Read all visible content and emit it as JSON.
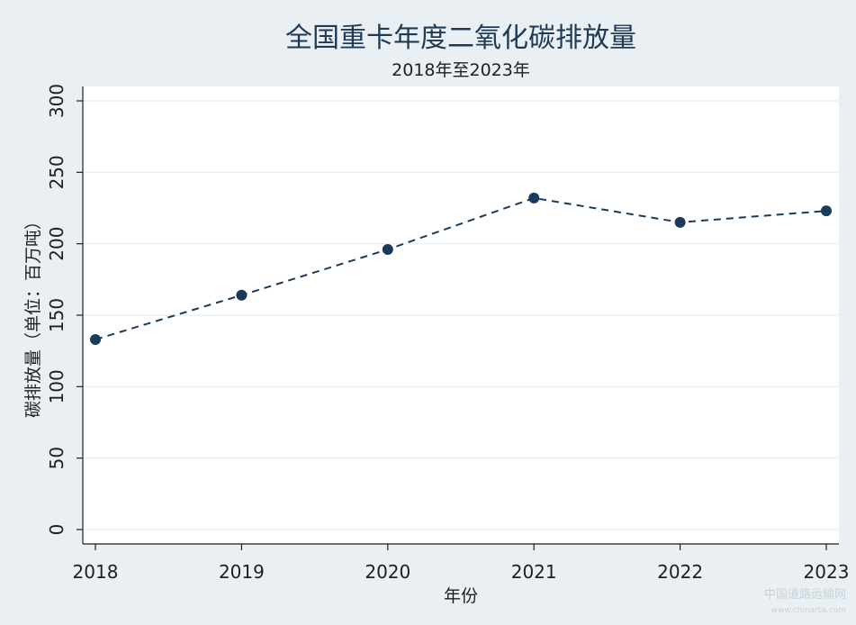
{
  "chart_data": {
    "type": "line",
    "title": "全国重卡年度二氧化碳排放量",
    "subtitle": "2018年至2023年",
    "xlabel": "年份",
    "ylabel": "碳排放量（单位：百万吨）",
    "categories": [
      "2018",
      "2019",
      "2020",
      "2021",
      "2022",
      "2023"
    ],
    "values": [
      133,
      164,
      196,
      232,
      215,
      223
    ],
    "ylim": [
      0,
      300
    ],
    "yticks": [
      "0",
      "50",
      "100",
      "150",
      "200",
      "250",
      "300"
    ],
    "grid": true,
    "legend": "none",
    "colors": {
      "series": "#1a3b5c",
      "background": "#e9eff3",
      "plot_background": "#ffffff"
    }
  },
  "watermark": {
    "text": "中国道路运输网",
    "subtext": "www.chinarta.com"
  }
}
